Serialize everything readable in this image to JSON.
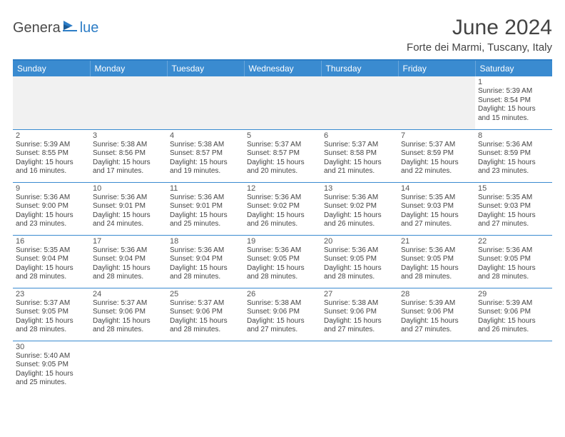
{
  "logo": {
    "text1": "Genera",
    "text2": "lue"
  },
  "title": "June 2024",
  "location": "Forte dei Marmi, Tuscany, Italy",
  "weekdays": [
    "Sunday",
    "Monday",
    "Tuesday",
    "Wednesday",
    "Thursday",
    "Friday",
    "Saturday"
  ],
  "colors": {
    "accent": "#3a8bd0",
    "divider": "#2d7dc6",
    "text": "#444444"
  },
  "days": {
    "1": {
      "sunrise": "5:39 AM",
      "sunset": "8:54 PM",
      "daylight": "15 hours and 15 minutes."
    },
    "2": {
      "sunrise": "5:39 AM",
      "sunset": "8:55 PM",
      "daylight": "15 hours and 16 minutes."
    },
    "3": {
      "sunrise": "5:38 AM",
      "sunset": "8:56 PM",
      "daylight": "15 hours and 17 minutes."
    },
    "4": {
      "sunrise": "5:38 AM",
      "sunset": "8:57 PM",
      "daylight": "15 hours and 19 minutes."
    },
    "5": {
      "sunrise": "5:37 AM",
      "sunset": "8:57 PM",
      "daylight": "15 hours and 20 minutes."
    },
    "6": {
      "sunrise": "5:37 AM",
      "sunset": "8:58 PM",
      "daylight": "15 hours and 21 minutes."
    },
    "7": {
      "sunrise": "5:37 AM",
      "sunset": "8:59 PM",
      "daylight": "15 hours and 22 minutes."
    },
    "8": {
      "sunrise": "5:36 AM",
      "sunset": "8:59 PM",
      "daylight": "15 hours and 23 minutes."
    },
    "9": {
      "sunrise": "5:36 AM",
      "sunset": "9:00 PM",
      "daylight": "15 hours and 23 minutes."
    },
    "10": {
      "sunrise": "5:36 AM",
      "sunset": "9:01 PM",
      "daylight": "15 hours and 24 minutes."
    },
    "11": {
      "sunrise": "5:36 AM",
      "sunset": "9:01 PM",
      "daylight": "15 hours and 25 minutes."
    },
    "12": {
      "sunrise": "5:36 AM",
      "sunset": "9:02 PM",
      "daylight": "15 hours and 26 minutes."
    },
    "13": {
      "sunrise": "5:36 AM",
      "sunset": "9:02 PM",
      "daylight": "15 hours and 26 minutes."
    },
    "14": {
      "sunrise": "5:35 AM",
      "sunset": "9:03 PM",
      "daylight": "15 hours and 27 minutes."
    },
    "15": {
      "sunrise": "5:35 AM",
      "sunset": "9:03 PM",
      "daylight": "15 hours and 27 minutes."
    },
    "16": {
      "sunrise": "5:35 AM",
      "sunset": "9:04 PM",
      "daylight": "15 hours and 28 minutes."
    },
    "17": {
      "sunrise": "5:36 AM",
      "sunset": "9:04 PM",
      "daylight": "15 hours and 28 minutes."
    },
    "18": {
      "sunrise": "5:36 AM",
      "sunset": "9:04 PM",
      "daylight": "15 hours and 28 minutes."
    },
    "19": {
      "sunrise": "5:36 AM",
      "sunset": "9:05 PM",
      "daylight": "15 hours and 28 minutes."
    },
    "20": {
      "sunrise": "5:36 AM",
      "sunset": "9:05 PM",
      "daylight": "15 hours and 28 minutes."
    },
    "21": {
      "sunrise": "5:36 AM",
      "sunset": "9:05 PM",
      "daylight": "15 hours and 28 minutes."
    },
    "22": {
      "sunrise": "5:36 AM",
      "sunset": "9:05 PM",
      "daylight": "15 hours and 28 minutes."
    },
    "23": {
      "sunrise": "5:37 AM",
      "sunset": "9:05 PM",
      "daylight": "15 hours and 28 minutes."
    },
    "24": {
      "sunrise": "5:37 AM",
      "sunset": "9:06 PM",
      "daylight": "15 hours and 28 minutes."
    },
    "25": {
      "sunrise": "5:37 AM",
      "sunset": "9:06 PM",
      "daylight": "15 hours and 28 minutes."
    },
    "26": {
      "sunrise": "5:38 AM",
      "sunset": "9:06 PM",
      "daylight": "15 hours and 27 minutes."
    },
    "27": {
      "sunrise": "5:38 AM",
      "sunset": "9:06 PM",
      "daylight": "15 hours and 27 minutes."
    },
    "28": {
      "sunrise": "5:39 AM",
      "sunset": "9:06 PM",
      "daylight": "15 hours and 27 minutes."
    },
    "29": {
      "sunrise": "5:39 AM",
      "sunset": "9:06 PM",
      "daylight": "15 hours and 26 minutes."
    },
    "30": {
      "sunrise": "5:40 AM",
      "sunset": "9:05 PM",
      "daylight": "15 hours and 25 minutes."
    }
  },
  "labels": {
    "sunrise": "Sunrise: ",
    "sunset": "Sunset: ",
    "daylight": "Daylight: "
  },
  "layout": [
    [
      null,
      null,
      null,
      null,
      null,
      null,
      "1"
    ],
    [
      "2",
      "3",
      "4",
      "5",
      "6",
      "7",
      "8"
    ],
    [
      "9",
      "10",
      "11",
      "12",
      "13",
      "14",
      "15"
    ],
    [
      "16",
      "17",
      "18",
      "19",
      "20",
      "21",
      "22"
    ],
    [
      "23",
      "24",
      "25",
      "26",
      "27",
      "28",
      "29"
    ],
    [
      "30",
      null,
      null,
      null,
      null,
      null,
      null
    ]
  ]
}
